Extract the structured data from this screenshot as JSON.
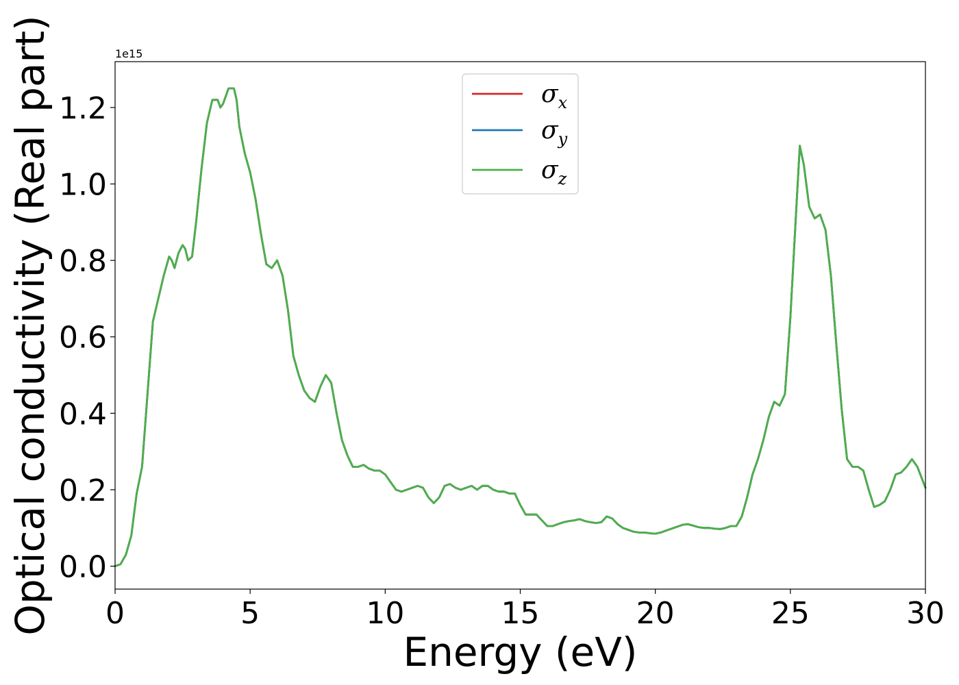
{
  "chart_data": {
    "type": "line",
    "xlabel": "Energy (eV)",
    "ylabel": "Optical conductivity (Real part)",
    "y_offset_text": "1e15",
    "y_scale": 1000000000000000.0,
    "xlim": [
      0,
      30
    ],
    "ylim": [
      -0.06,
      1.32
    ],
    "xticks": [
      0,
      5,
      10,
      15,
      20,
      25,
      30
    ],
    "xtick_labels": [
      "0",
      "5",
      "10",
      "15",
      "20",
      "25",
      "30"
    ],
    "yticks": [
      0.0,
      0.2,
      0.4,
      0.6,
      0.8,
      1.0,
      1.2
    ],
    "ytick_labels": [
      "0.0",
      "0.2",
      "0.4",
      "0.6",
      "0.8",
      "1.0",
      "1.2"
    ],
    "grid": false,
    "legend_position": "upper center",
    "series": [
      {
        "name": "σx",
        "base": "σ",
        "sub": "x",
        "color": "#d62728"
      },
      {
        "name": "σy",
        "base": "σ",
        "sub": "y",
        "color": "#1f77b4"
      },
      {
        "name": "σz",
        "base": "σ",
        "sub": "z",
        "color": "#4daf4a"
      }
    ],
    "x": [
      0,
      0.2,
      0.4,
      0.6,
      0.8,
      1.0,
      1.2,
      1.4,
      1.6,
      1.8,
      2.0,
      2.1,
      2.2,
      2.35,
      2.5,
      2.6,
      2.7,
      2.85,
      3.0,
      3.2,
      3.4,
      3.6,
      3.8,
      3.9,
      4.0,
      4.2,
      4.4,
      4.5,
      4.6,
      4.8,
      5.0,
      5.2,
      5.4,
      5.6,
      5.8,
      6.0,
      6.2,
      6.4,
      6.6,
      6.8,
      7.0,
      7.2,
      7.4,
      7.6,
      7.8,
      8.0,
      8.2,
      8.4,
      8.6,
      8.8,
      9.0,
      9.2,
      9.4,
      9.6,
      9.8,
      10.0,
      10.2,
      10.4,
      10.6,
      10.8,
      11.0,
      11.2,
      11.4,
      11.6,
      11.8,
      12.0,
      12.2,
      12.4,
      12.6,
      12.8,
      13.0,
      13.2,
      13.4,
      13.6,
      13.8,
      14.0,
      14.2,
      14.4,
      14.6,
      14.8,
      15.0,
      15.2,
      15.4,
      15.6,
      15.8,
      16.0,
      16.2,
      16.4,
      16.6,
      16.8,
      17.0,
      17.2,
      17.4,
      17.6,
      17.8,
      18.0,
      18.2,
      18.4,
      18.6,
      18.8,
      19.0,
      19.2,
      19.4,
      19.6,
      19.8,
      20.0,
      20.2,
      20.4,
      20.6,
      20.8,
      21.0,
      21.2,
      21.4,
      21.6,
      21.8,
      22.0,
      22.2,
      22.4,
      22.6,
      22.8,
      23.0,
      23.2,
      23.4,
      23.6,
      23.8,
      24.0,
      24.2,
      24.4,
      24.6,
      24.8,
      25.0,
      25.2,
      25.35,
      25.5,
      25.7,
      25.9,
      26.1,
      26.3,
      26.5,
      26.7,
      26.9,
      27.1,
      27.3,
      27.5,
      27.7,
      27.9,
      28.1,
      28.3,
      28.5,
      28.7,
      28.9,
      29.1,
      29.3,
      29.5,
      29.7,
      30.0
    ],
    "y": [
      0.0,
      0.005,
      0.03,
      0.08,
      0.19,
      0.26,
      0.45,
      0.64,
      0.7,
      0.76,
      0.81,
      0.8,
      0.78,
      0.82,
      0.84,
      0.83,
      0.8,
      0.81,
      0.9,
      1.04,
      1.16,
      1.22,
      1.22,
      1.2,
      1.21,
      1.25,
      1.25,
      1.22,
      1.15,
      1.08,
      1.03,
      0.96,
      0.87,
      0.79,
      0.78,
      0.8,
      0.76,
      0.67,
      0.55,
      0.5,
      0.46,
      0.44,
      0.43,
      0.47,
      0.5,
      0.48,
      0.4,
      0.33,
      0.29,
      0.26,
      0.26,
      0.265,
      0.255,
      0.25,
      0.25,
      0.24,
      0.22,
      0.2,
      0.195,
      0.2,
      0.205,
      0.21,
      0.205,
      0.18,
      0.165,
      0.18,
      0.21,
      0.215,
      0.205,
      0.2,
      0.205,
      0.21,
      0.2,
      0.21,
      0.21,
      0.2,
      0.195,
      0.195,
      0.19,
      0.19,
      0.16,
      0.135,
      0.135,
      0.135,
      0.12,
      0.105,
      0.105,
      0.11,
      0.115,
      0.118,
      0.12,
      0.123,
      0.118,
      0.115,
      0.113,
      0.115,
      0.13,
      0.125,
      0.11,
      0.1,
      0.095,
      0.09,
      0.088,
      0.088,
      0.086,
      0.085,
      0.088,
      0.093,
      0.098,
      0.103,
      0.108,
      0.11,
      0.106,
      0.102,
      0.1,
      0.1,
      0.098,
      0.097,
      0.1,
      0.105,
      0.105,
      0.13,
      0.18,
      0.24,
      0.28,
      0.33,
      0.39,
      0.43,
      0.42,
      0.45,
      0.65,
      0.91,
      1.1,
      1.05,
      0.94,
      0.91,
      0.92,
      0.88,
      0.76,
      0.58,
      0.41,
      0.28,
      0.26,
      0.26,
      0.25,
      0.2,
      0.155,
      0.16,
      0.17,
      0.2,
      0.24,
      0.245,
      0.26,
      0.28,
      0.26,
      0.205
    ]
  }
}
